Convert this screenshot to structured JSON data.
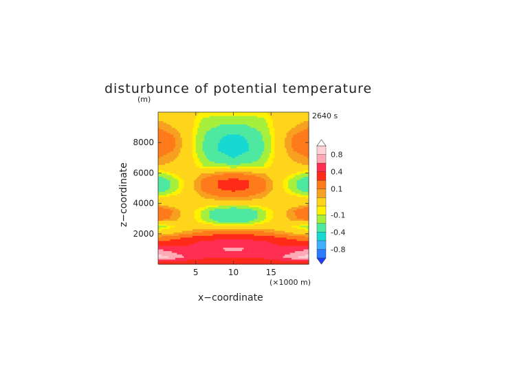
{
  "chart_data": {
    "type": "heatmap",
    "title": "disturbunce of potential temperature",
    "title_units": "(m)",
    "annotation": "2640 s",
    "xlabel": "x−coordinate",
    "ylabel": "z−coordinate",
    "x_unit_note": "(×1000 m)",
    "xlim": [
      0,
      20
    ],
    "ylim": [
      0,
      10000
    ],
    "xticks": [
      5,
      10,
      15
    ],
    "xtick_labels": [
      "5",
      "10",
      "15"
    ],
    "yticks": [
      2000,
      4000,
      6000,
      8000
    ],
    "ytick_labels": [
      "2000",
      "4000",
      "6000",
      "8000"
    ],
    "colorbar": {
      "levels": [
        -1.0,
        -0.8,
        -0.6,
        -0.4,
        -0.2,
        -0.1,
        -0.05,
        0.05,
        0.1,
        0.2,
        0.4,
        0.6,
        0.8,
        1.0
      ],
      "colors": [
        "#1e3cff",
        "#2a7bff",
        "#3fb0ff",
        "#18d8d2",
        "#4fe8a0",
        "#a6ef3c",
        "#fff200",
        "#ffd51c",
        "#f7a021",
        "#ff7a1a",
        "#ff2a18",
        "#ff2e52",
        "#ffaab4",
        "#ffd2d8",
        "#ffffff"
      ],
      "tick_labels": [
        "-0.8",
        "-0.4",
        "-0.1",
        "0.1",
        "0.4",
        "0.8"
      ],
      "tick_values": [
        -0.8,
        -0.4,
        -0.1,
        0.1,
        0.4,
        0.8
      ]
    },
    "field": {
      "x": [
        0,
        2,
        4,
        6,
        8,
        10,
        12,
        14,
        16,
        18,
        20
      ],
      "z": [
        0,
        500,
        1000,
        1500,
        2000,
        2500,
        3000,
        3500,
        4000,
        4500,
        5000,
        5500,
        6000,
        6500,
        7000,
        7500,
        8000,
        8500,
        9000,
        9500,
        10000
      ],
      "values": [
        [
          0.15,
          0.18,
          0.2,
          0.22,
          0.24,
          0.25,
          0.24,
          0.22,
          0.2,
          0.18,
          0.15
        ],
        [
          0.9,
          0.75,
          0.55,
          0.45,
          0.42,
          0.42,
          0.42,
          0.45,
          0.55,
          0.75,
          0.9
        ],
        [
          0.6,
          0.5,
          0.45,
          0.5,
          0.6,
          0.65,
          0.6,
          0.5,
          0.45,
          0.5,
          0.6
        ],
        [
          0.2,
          0.25,
          0.35,
          0.42,
          0.48,
          0.5,
          0.48,
          0.42,
          0.35,
          0.25,
          0.2
        ],
        [
          0.04,
          0.06,
          0.1,
          0.15,
          0.18,
          0.2,
          0.18,
          0.15,
          0.1,
          0.06,
          0.04
        ],
        [
          -0.15,
          -0.06,
          0.0,
          0.0,
          0.0,
          0.0,
          0.0,
          0.0,
          0.0,
          -0.06,
          -0.15
        ],
        [
          0.15,
          0.08,
          0.0,
          -0.12,
          -0.3,
          -0.35,
          -0.3,
          -0.12,
          0.0,
          0.08,
          0.15
        ],
        [
          0.2,
          0.1,
          0.0,
          -0.12,
          -0.3,
          -0.38,
          -0.3,
          -0.12,
          0.0,
          0.1,
          0.2
        ],
        [
          0.04,
          0.0,
          0.0,
          0.0,
          0.0,
          0.0,
          0.0,
          0.0,
          0.0,
          0.0,
          0.04
        ],
        [
          -0.08,
          -0.04,
          0.0,
          0.06,
          0.1,
          0.12,
          0.1,
          0.06,
          0.0,
          -0.04,
          -0.08
        ],
        [
          -0.35,
          -0.15,
          0.0,
          0.12,
          0.2,
          0.25,
          0.2,
          0.12,
          0.0,
          -0.15,
          -0.35
        ],
        [
          -0.35,
          -0.15,
          0.0,
          0.12,
          0.2,
          0.25,
          0.2,
          0.12,
          0.0,
          -0.15,
          -0.35
        ],
        [
          -0.12,
          -0.05,
          0.0,
          0.05,
          0.08,
          0.1,
          0.08,
          0.05,
          0.0,
          -0.05,
          -0.12
        ],
        [
          0.05,
          0.03,
          0.0,
          -0.1,
          -0.14,
          -0.16,
          -0.14,
          -0.1,
          0.0,
          0.03,
          0.05
        ],
        [
          0.1,
          0.06,
          0.0,
          -0.15,
          -0.35,
          -0.4,
          -0.35,
          -0.15,
          0.0,
          0.06,
          0.1
        ],
        [
          0.15,
          0.1,
          0.0,
          -0.2,
          -0.4,
          -0.45,
          -0.4,
          -0.2,
          0.0,
          0.1,
          0.15
        ],
        [
          0.2,
          0.12,
          0.0,
          -0.2,
          -0.4,
          -0.45,
          -0.4,
          -0.2,
          0.0,
          0.12,
          0.2
        ],
        [
          0.15,
          0.1,
          0.0,
          -0.18,
          -0.38,
          -0.42,
          -0.38,
          -0.18,
          0.0,
          0.1,
          0.15
        ],
        [
          0.1,
          0.05,
          0.0,
          -0.15,
          -0.22,
          -0.25,
          -0.22,
          -0.15,
          0.0,
          0.05,
          0.1
        ],
        [
          0.05,
          0.02,
          0.0,
          -0.12,
          -0.15,
          -0.16,
          -0.15,
          -0.12,
          0.0,
          0.02,
          0.05
        ],
        [
          0.03,
          0.0,
          0.0,
          -0.06,
          -0.06,
          -0.06,
          -0.06,
          -0.06,
          0.0,
          0.0,
          0.03
        ]
      ]
    }
  }
}
